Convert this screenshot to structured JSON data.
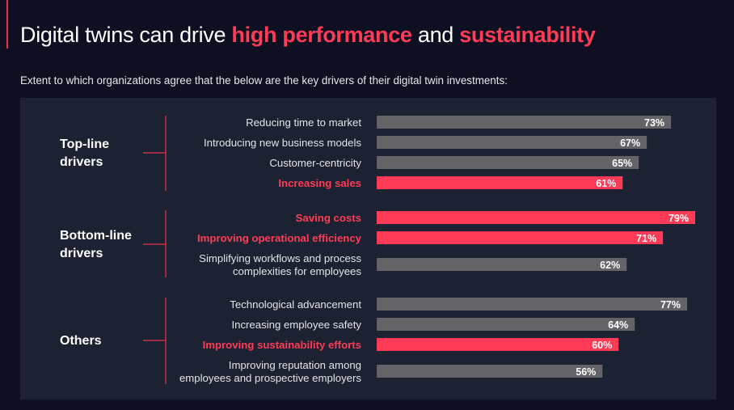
{
  "header": {
    "title_prefix": "Digital twins can drive ",
    "title_hl1": "high performance",
    "title_mid": " and ",
    "title_hl2": "sustainability",
    "subtitle": "Extent to which organizations agree that the below are the key drivers of their digital twin investments:"
  },
  "colors": {
    "highlight": "#ff3b57",
    "neutral_bar": "#646468",
    "background": "#0e1022",
    "panel": "#1c2232",
    "bracket": "#e8334a"
  },
  "chart_data": {
    "type": "bar",
    "orientation": "horizontal",
    "value_suffix": "%",
    "xlim": [
      0,
      80
    ],
    "groups": [
      {
        "name": [
          "Top-line",
          "drivers"
        ],
        "items": [
          {
            "label": [
              "Reducing time to market"
            ],
            "value": 73,
            "highlight": false
          },
          {
            "label": [
              "Introducing new business models"
            ],
            "value": 67,
            "highlight": false
          },
          {
            "label": [
              "Customer-centricity"
            ],
            "value": 65,
            "highlight": false
          },
          {
            "label": [
              "Increasing sales"
            ],
            "value": 61,
            "highlight": true
          }
        ]
      },
      {
        "name": [
          "Bottom-line",
          "drivers"
        ],
        "items": [
          {
            "label": [
              "Saving costs"
            ],
            "value": 79,
            "highlight": true
          },
          {
            "label": [
              "Improving operational efficiency"
            ],
            "value": 71,
            "highlight": true
          },
          {
            "label": [
              "Simplifying workflows and process",
              "complexities for employees"
            ],
            "value": 62,
            "highlight": false
          }
        ]
      },
      {
        "name": [
          "Others"
        ],
        "items": [
          {
            "label": [
              "Technological advancement"
            ],
            "value": 77,
            "highlight": false
          },
          {
            "label": [
              "Increasing employee safety"
            ],
            "value": 64,
            "highlight": false
          },
          {
            "label": [
              "Improving sustainability efforts"
            ],
            "value": 60,
            "highlight": true
          },
          {
            "label": [
              "Improving reputation among",
              "employees and prospective employers"
            ],
            "value": 56,
            "highlight": false
          }
        ]
      }
    ]
  }
}
